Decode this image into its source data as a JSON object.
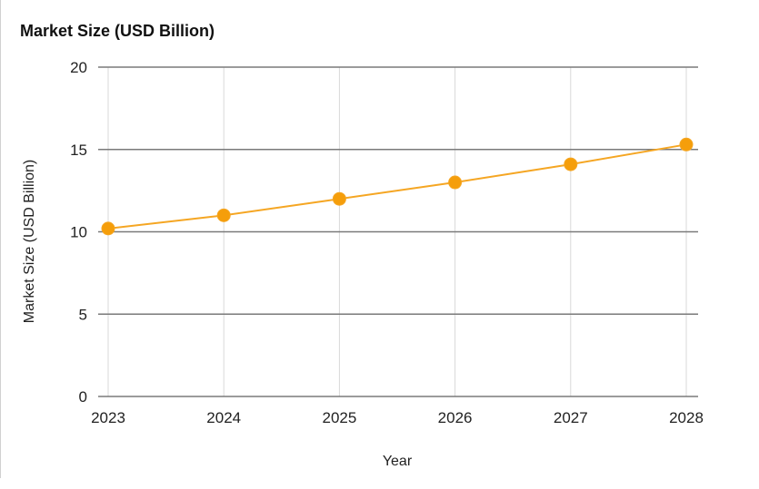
{
  "chart_data": {
    "type": "line",
    "title": "Market Size (USD Billion)",
    "xlabel": "Year",
    "ylabel": "Market Size (USD Billion)",
    "categories": [
      "2023",
      "2024",
      "2025",
      "2026",
      "2027",
      "2028"
    ],
    "series": [
      {
        "name": "Market Size (USD Billion)",
        "values": [
          10.2,
          11.0,
          12.0,
          13.0,
          14.1,
          15.3
        ],
        "color": "#f5a623"
      }
    ],
    "ylim": [
      0,
      20
    ],
    "yticks": [
      "0",
      "5",
      "10",
      "15",
      "20"
    ],
    "grid": true,
    "legend": "none"
  }
}
